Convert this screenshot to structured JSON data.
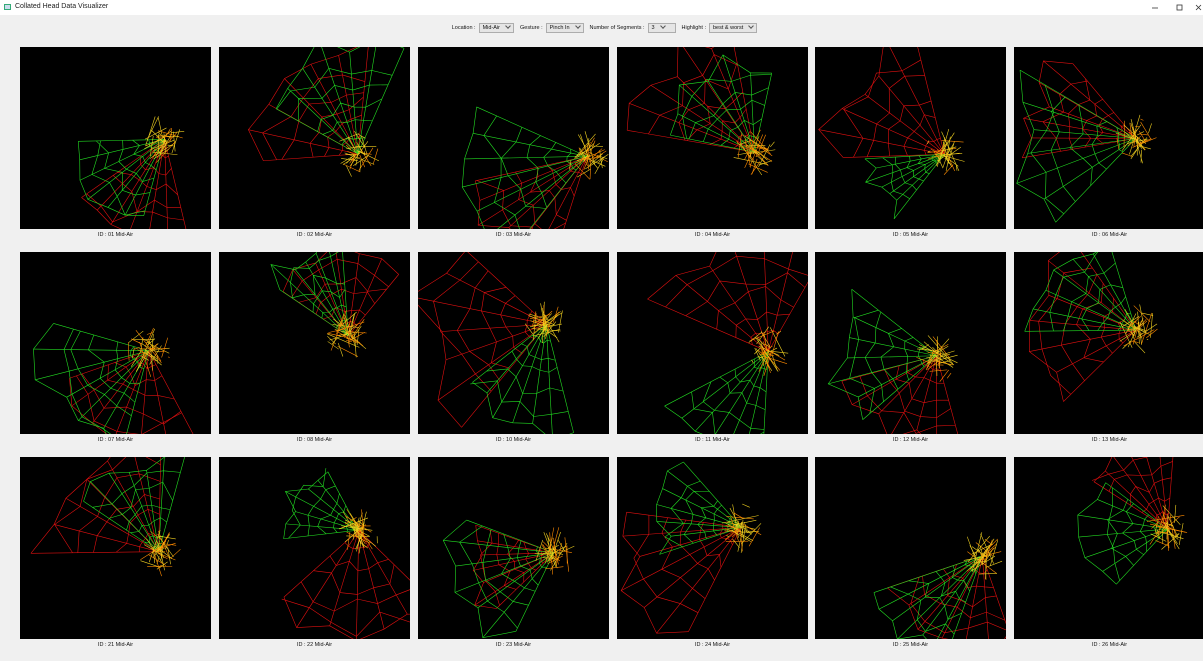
{
  "window": {
    "title": "Collated Head Data Visualizer"
  },
  "controls": [
    {
      "label": "Location :",
      "value": "Mid-Air"
    },
    {
      "label": "Gesture :",
      "value": "Pinch In"
    },
    {
      "label": "Number of Segments :",
      "value": "3"
    },
    {
      "label": "Highlight :",
      "value": "best & worst"
    }
  ],
  "panels": [
    {
      "caption": "ID : 01  Mid-Air"
    },
    {
      "caption": "ID : 02  Mid-Air"
    },
    {
      "caption": "ID : 03  Mid-Air"
    },
    {
      "caption": "ID : 04  Mid-Air"
    },
    {
      "caption": "ID : 05  Mid-Air"
    },
    {
      "caption": "ID : 06  Mid-Air"
    },
    {
      "caption": "ID : 07  Mid-Air"
    },
    {
      "caption": "ID : 08  Mid-Air"
    },
    {
      "caption": "ID : 10  Mid-Air"
    },
    {
      "caption": "ID : 11  Mid-Air"
    },
    {
      "caption": "ID : 12  Mid-Air"
    },
    {
      "caption": "ID : 13  Mid-Air"
    },
    {
      "caption": "ID : 21  Mid-Air"
    },
    {
      "caption": "ID : 22  Mid-Air"
    },
    {
      "caption": "ID : 23  Mid-Air"
    },
    {
      "caption": "ID : 24  Mid-Air"
    },
    {
      "caption": "ID : 25  Mid-Air"
    },
    {
      "caption": "ID : 26  Mid-Air"
    }
  ]
}
